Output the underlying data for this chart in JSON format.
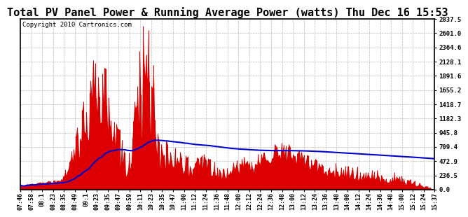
{
  "title": "Total PV Panel Power & Running Average Power (watts) Thu Dec 16 15:53",
  "copyright": "Copyright 2010 Cartronics.com",
  "bg_color": "#ffffff",
  "plot_bg_color": "#ffffff",
  "grid_color": "#aaaaaa",
  "bar_color": "#dd0000",
  "line_color": "#0000cc",
  "ymax": 2837.5,
  "ymin": 0.0,
  "yticks": [
    0.0,
    236.5,
    472.9,
    709.4,
    945.8,
    1182.3,
    1418.7,
    1655.2,
    1891.6,
    2128.1,
    2364.6,
    2601.0,
    2837.5
  ],
  "x_labels": [
    "07:46",
    "07:58",
    "08:1",
    "08:23",
    "08:35",
    "08:49",
    "09:1",
    "09:23",
    "09:35",
    "09:47",
    "09:59",
    "10:11",
    "10:23",
    "10:35",
    "10:47",
    "11:00",
    "11:12",
    "11:24",
    "11:36",
    "11:48",
    "12:00",
    "12:12",
    "12:24",
    "12:36",
    "12:48",
    "13:00",
    "13:12",
    "13:24",
    "13:36",
    "13:48",
    "14:00",
    "14:12",
    "14:24",
    "14:36",
    "14:48",
    "15:00",
    "15:12",
    "15:24",
    "15:37"
  ],
  "title_fontsize": 11,
  "copyright_fontsize": 6.5,
  "n_points": 390
}
